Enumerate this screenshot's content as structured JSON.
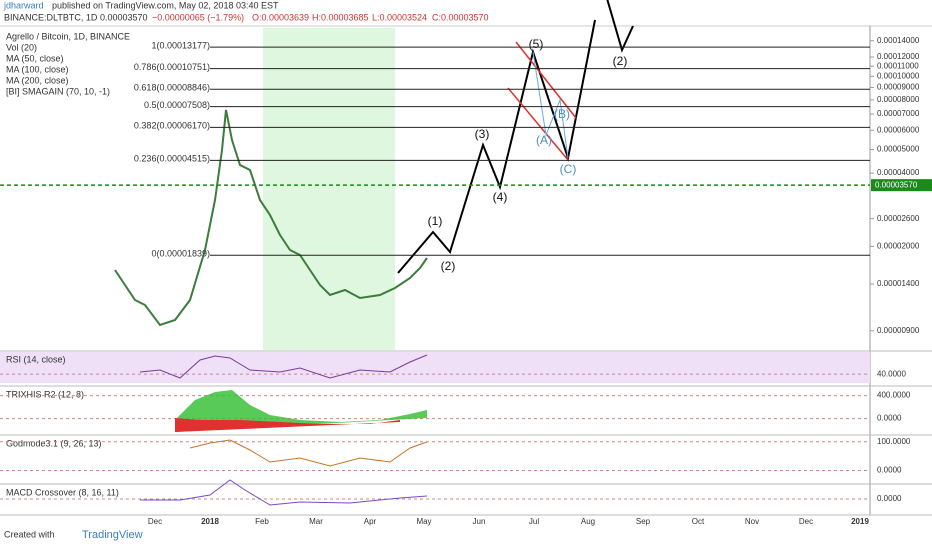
{
  "header": {
    "user": "jdharward",
    "published": "published on TradingView.com, May 02, 2018 03:40 EST",
    "symbol": "BINANCE:DLTBTC, 1D",
    "last": "0.00003570",
    "change": "−0.00000065 (−1.79%)",
    "open": "O:0.00003639",
    "high": "H:0.00003685",
    "low": "L:0.00003524",
    "close": "C:0.00003570"
  },
  "legend": [
    "Agrello / Bitcoin, 1D, BINANCE",
    "Vol (20)",
    "MA (50, close)",
    "MA (100, close)",
    "MA (200, close)",
    "[BI] SMAGAIN (70, 10, -1)"
  ],
  "price_axis": {
    "scale": "log",
    "ylim": [
      7.5e-06,
      0.000155
    ],
    "yticks": [
      {
        "value": 0.00014,
        "label": "0.00014000"
      },
      {
        "value": 0.00012,
        "label": "0.00012000"
      },
      {
        "value": 0.00011,
        "label": "0.00011000"
      },
      {
        "value": 0.0001,
        "label": "0.00010000"
      },
      {
        "value": 9e-05,
        "label": "0.00009000"
      },
      {
        "value": 8e-05,
        "label": "0.00008000"
      },
      {
        "value": 7e-05,
        "label": "0.00007000"
      },
      {
        "value": 6e-05,
        "label": "0.00006000"
      },
      {
        "value": 5e-05,
        "label": "0.00005000"
      },
      {
        "value": 4e-05,
        "label": "0.00004000"
      },
      {
        "value": 2.6e-05,
        "label": "0.00002600"
      },
      {
        "value": 2e-05,
        "label": "0.00002000"
      },
      {
        "value": 1.4e-05,
        "label": "0.00001400"
      },
      {
        "value": 9e-06,
        "label": "0.00000900"
      }
    ],
    "current": {
      "value": 3.57e-05,
      "label": "0.00003570"
    }
  },
  "fib_levels": [
    {
      "value": 0.00013177,
      "label": "1(0.00013177)"
    },
    {
      "value": 0.00010751,
      "label": "0.786(0.00010751)"
    },
    {
      "value": 8.846e-05,
      "label": "0.618(0.00008846)"
    },
    {
      "value": 7.508e-05,
      "label": "0.5(0.00007508)"
    },
    {
      "value": 6.17e-05,
      "label": "0.382(0.00006170)"
    },
    {
      "value": 4.515e-05,
      "label": "0.236(0.00004515)"
    },
    {
      "value": 1.839e-05,
      "label": "0(0.00001839)"
    }
  ],
  "waves": [
    "(1)",
    "(2)",
    "(3)",
    "(4)",
    "(5)",
    "(A)",
    "(B)",
    "(C)",
    "(2)"
  ],
  "x_axis": [
    "Dec",
    "2018",
    "Feb",
    "Mar",
    "Apr",
    "May",
    "Jun",
    "Jul",
    "Aug",
    "Sep",
    "Oct",
    "Nov",
    "Dec",
    "2019"
  ],
  "panels": [
    {
      "label": "RSI (14, close)",
      "ylim": [
        20,
        90
      ],
      "ticks": [
        {
          "value": 40,
          "label": "40.0000"
        }
      ]
    },
    {
      "label": "TRIXHIS R2 (12, 8)",
      "ylim": [
        -250,
        550
      ],
      "ticks": [
        {
          "value": 400,
          "label": "400.0000"
        },
        {
          "value": 0,
          "label": "0.0000"
        }
      ]
    },
    {
      "label": "Godmode3.1 (9, 26, 13)",
      "ylim": [
        -40,
        120
      ],
      "ticks": [
        {
          "value": 100,
          "label": "100.0000"
        },
        {
          "value": 0,
          "label": "0.0000"
        }
      ]
    },
    {
      "label": "MACD Crossover (8, 16, 11)",
      "ylim": [
        -1,
        1
      ],
      "ticks": [
        {
          "value": 0,
          "label": "0.0000"
        }
      ]
    }
  ],
  "footer": {
    "created": "Created with",
    "brand": "TradingView"
  }
}
